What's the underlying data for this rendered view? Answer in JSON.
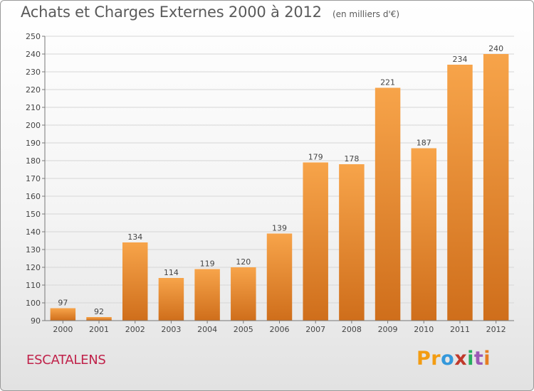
{
  "header": {
    "title": "Achats et Charges Externes 2000 à 2012",
    "unit": "(en milliers d'€)"
  },
  "footer": {
    "commune": "ESCATALENS",
    "logo_text": "Proxiti",
    "logo_colors": [
      "#f39c12",
      "#f39c12",
      "#3498db",
      "#c0392b",
      "#27ae60",
      "#9b59b6",
      "#e67e22"
    ]
  },
  "colors": {
    "bar_top": "#f7a44a",
    "bar_bottom": "#cf6e1b",
    "grid": "#d6d6d6",
    "axis": "#777777"
  },
  "chart_data": {
    "type": "bar",
    "title": "Achats et Charges Externes 2000 à 2012",
    "subtitle": "(en milliers d'€)",
    "categories": [
      "2000",
      "2001",
      "2002",
      "2003",
      "2004",
      "2005",
      "2006",
      "2007",
      "2008",
      "2009",
      "2010",
      "2011",
      "2012"
    ],
    "values": [
      97,
      92,
      134,
      114,
      119,
      120,
      139,
      179,
      178,
      221,
      187,
      234,
      240
    ],
    "ylim": [
      90,
      250
    ],
    "ytick_step": 10,
    "grid": true,
    "data_labels": true
  }
}
